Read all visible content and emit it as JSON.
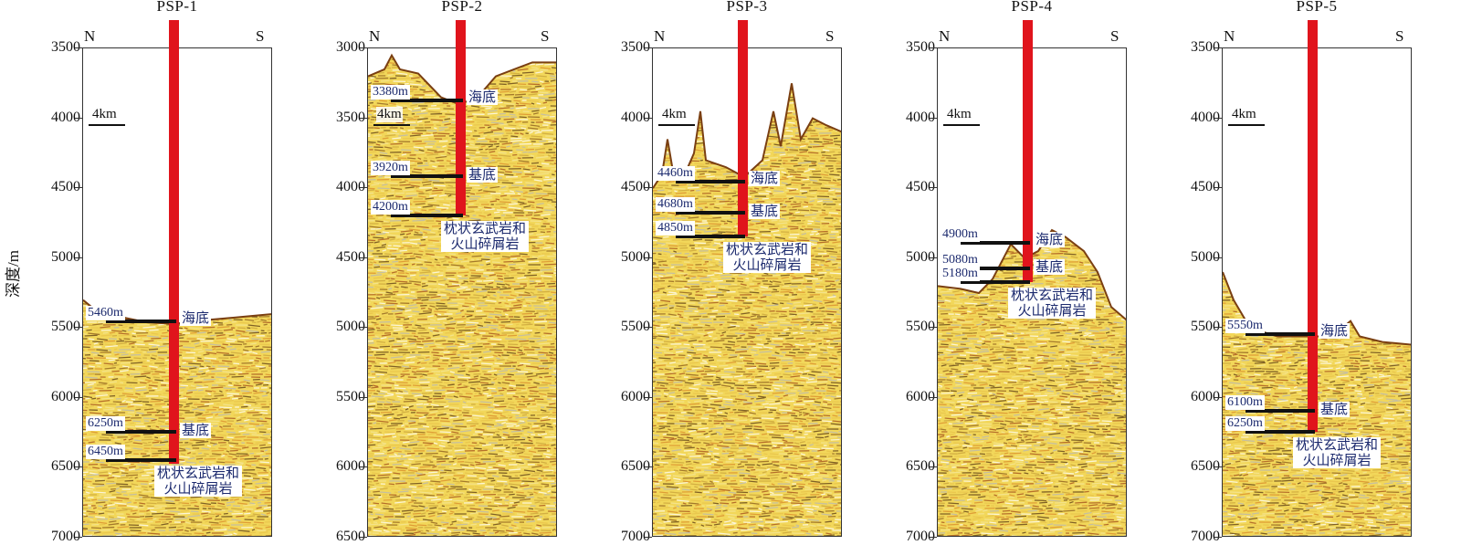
{
  "figure": {
    "y_axis_title": "深度/m",
    "direction_north": "N",
    "direction_south": "S",
    "scale_bar_label": "4km",
    "labels": {
      "seabed": "海底",
      "basement": "基底",
      "rock_line1": "枕状玄武岩和",
      "rock_line2": "火山碎屑岩"
    }
  },
  "panels": [
    {
      "title": "PSP-1",
      "ylim": [
        3500,
        7000
      ],
      "ticks": [
        "3500",
        "4000",
        "4500",
        "5000",
        "5500",
        "6000",
        "6500",
        "7000"
      ],
      "depths": [
        "5460m",
        "6250m",
        "6450m"
      ],
      "depth_values": [
        5460,
        6250,
        6450
      ],
      "well_bottom": 6480
    },
    {
      "title": "PSP-2",
      "ylim": [
        3000,
        6500
      ],
      "ticks": [
        "3000",
        "3500",
        "4000",
        "4500",
        "5000",
        "5500",
        "6000",
        "6500"
      ],
      "depths": [
        "3380m",
        "3920m",
        "4200m"
      ],
      "depth_values": [
        3380,
        3920,
        4200
      ],
      "well_bottom": 4200
    },
    {
      "title": "PSP-3",
      "ylim": [
        3500,
        7000
      ],
      "ticks": [
        "3500",
        "4000",
        "4500",
        "5000",
        "5500",
        "6000",
        "6500",
        "7000"
      ],
      "depths": [
        "4460m",
        "4680m",
        "4850m"
      ],
      "depth_values": [
        4460,
        4680,
        4850
      ],
      "well_bottom": 4850
    },
    {
      "title": "PSP-4",
      "ylim": [
        3500,
        7000
      ],
      "ticks": [
        "3500",
        "4000",
        "4500",
        "5000",
        "5500",
        "6000",
        "6500",
        "7000"
      ],
      "depths": [
        "4900m",
        "5080m",
        "5180m"
      ],
      "depth_values": [
        4900,
        5080,
        5180
      ],
      "well_bottom": 5180
    },
    {
      "title": "PSP-5",
      "ylim": [
        3500,
        7000
      ],
      "ticks": [
        "3500",
        "4000",
        "4500",
        "5000",
        "5500",
        "6000",
        "6500",
        "7000"
      ],
      "depths": [
        "5550m",
        "6100m",
        "6250m"
      ],
      "depth_values": [
        5550,
        6100,
        6250
      ],
      "well_bottom": 6250
    }
  ],
  "colors": {
    "well": "#e0141c",
    "label_text": "#1c2a6e",
    "seismic_base": "#f2d75a"
  }
}
